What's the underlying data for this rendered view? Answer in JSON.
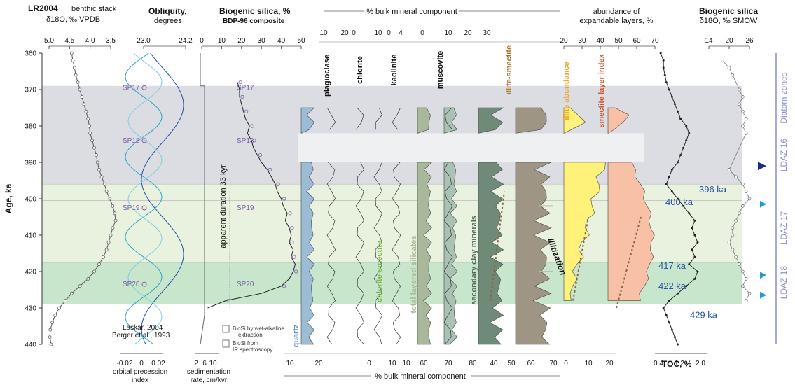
{
  "chart_data": {
    "type": "line",
    "y_axis": {
      "label": "Age, ka",
      "ylim": [
        360,
        440
      ],
      "ticks": [
        360,
        370,
        380,
        390,
        400,
        410,
        420,
        430,
        440
      ]
    },
    "bands": [
      {
        "from": 369,
        "to": 396,
        "color": "#dcdde2"
      },
      {
        "from": 396,
        "to": 417.5,
        "color": "#e8f2de"
      },
      {
        "from": 417.5,
        "to": 429,
        "color": "#c8e6cc"
      }
    ],
    "panels": {
      "lr04": {
        "title_bold": "LR2004",
        "title_rest": " benthic stack",
        "subtitle": "δ18O, ‰ VPDB",
        "ticks": [
          "5.0",
          "4.5",
          "4.0",
          "3.5"
        ],
        "ages": [
          360,
          362,
          364,
          366,
          368,
          370,
          372,
          374,
          376,
          378,
          380,
          382,
          384,
          386,
          388,
          390,
          392,
          394,
          396,
          398,
          400,
          402,
          404,
          406,
          408,
          410,
          412,
          414,
          416,
          418,
          420,
          422,
          424,
          426,
          428,
          430,
          432,
          434,
          436,
          438,
          440
        ],
        "values": [
          4.45,
          4.42,
          4.38,
          4.35,
          4.3,
          4.25,
          4.2,
          4.15,
          4.1,
          4.05,
          4.02,
          4.0,
          3.95,
          3.9,
          3.85,
          3.82,
          3.78,
          3.72,
          3.65,
          3.6,
          3.52,
          3.45,
          3.4,
          3.38,
          3.45,
          3.5,
          3.55,
          3.6,
          3.68,
          3.78,
          3.9,
          4.05,
          4.25,
          4.45,
          4.6,
          4.75,
          4.85,
          4.92,
          4.97,
          4.98,
          4.95
        ]
      },
      "obliquity": {
        "title": "Obliquity,",
        "subtitle": "degrees",
        "ticks": [
          "23.0",
          "24.2"
        ],
        "bottom_ticks": [
          "-0.02",
          "0",
          "0.02"
        ],
        "bottom_label": "orbital precession",
        "bottom_label2": "index",
        "source1": "Laskar, 2004",
        "source2": "Berger et al., 1993"
      },
      "sedrate": {
        "bottom_ticks": [
          "2",
          "6",
          "10"
        ],
        "bottom_label": "sedimentation",
        "bottom_label2": "rate, cm/kvr"
      },
      "biosi": {
        "title": "Biogenic silica, %",
        "subtitle": "BDP-96 composite",
        "ticks": [
          "0",
          "10",
          "20",
          "30",
          "40",
          "50"
        ],
        "annotation": "apparent duration 33 kyr",
        "legend1a": "BioSi by wet-alkaline",
        "legend1b": "extraction",
        "legend2a": "BioSi from",
        "legend2b": "IR spectroscopy",
        "ages": [
          368,
          370,
          372,
          374,
          376,
          378,
          380,
          382,
          384,
          386,
          388,
          390,
          392,
          394,
          396,
          398,
          400,
          402,
          404,
          406,
          408,
          410,
          412,
          414,
          416,
          418,
          420,
          422,
          424,
          426,
          428,
          430
        ],
        "values": [
          18,
          19,
          19,
          20,
          21,
          22,
          24,
          23,
          25,
          26,
          28,
          30,
          33,
          35,
          37,
          38,
          40,
          41,
          43,
          42,
          44,
          45,
          44,
          46,
          45,
          47,
          46,
          44,
          40,
          30,
          12,
          3
        ]
      },
      "sp_labels": [
        "SP17",
        "SP18",
        "SP19",
        "SP20"
      ],
      "sp_ages": [
        369.5,
        384,
        402.5,
        423.5
      ]
    },
    "minerals": {
      "top_title": "% bulk mineral component",
      "bottom_title": "% bulk mineral component",
      "top_ticks": [
        "10",
        "20",
        "0",
        "10",
        "0",
        "4",
        "0",
        "10",
        "20",
        "30"
      ],
      "bottom_ticks": [
        "10",
        "20",
        "0",
        "10",
        "10",
        "60",
        "70",
        "80",
        "40",
        "50",
        "60",
        "70",
        "0",
        "10",
        "20"
      ],
      "series": [
        {
          "name": "quartz",
          "color": "#9bbcd4"
        },
        {
          "name": "plagioclase",
          "color": "#333333"
        },
        {
          "name": "chlorite",
          "color": "#333333"
        },
        {
          "name": "chlorite-smectite",
          "color": "#7ab648"
        },
        {
          "name": "kaolinite",
          "color": "#333333"
        },
        {
          "name": "total layered silicates",
          "color": "#a9b89a"
        },
        {
          "name": "muscovite",
          "color": "#333333"
        },
        {
          "name": "secondary clay minerals",
          "color": "#58775e"
        },
        {
          "name": "illite-smectite",
          "color": "#b0752f"
        }
      ]
    },
    "expandable": {
      "title": "abundance of",
      "title2": "expandable layers, %",
      "top_ticks": [
        "20",
        "30",
        "40",
        "50",
        "60",
        "70"
      ],
      "illite_label": "illite abundance",
      "smectite_label": "smectite layer index",
      "illitization": "Illitization"
    },
    "toc": {
      "label": "TOC, %",
      "ticks": [
        "0.4",
        "1.2",
        "2.0"
      ],
      "ages": [
        360,
        362,
        364,
        366,
        368,
        370,
        372,
        374,
        376,
        378,
        380,
        382,
        384,
        386,
        388,
        390,
        392,
        394,
        396,
        398,
        400,
        402,
        404,
        406,
        408,
        410,
        412,
        414,
        416,
        418,
        420,
        422,
        424,
        426,
        428,
        430,
        432,
        434,
        436,
        438,
        440
      ],
      "values": [
        0.6,
        0.7,
        0.7,
        0.75,
        0.8,
        0.9,
        1.0,
        1.1,
        1.2,
        1.3,
        1.5,
        1.6,
        1.5,
        1.4,
        1.3,
        1.2,
        1.0,
        0.9,
        0.8,
        1.0,
        1.2,
        1.4,
        1.6,
        1.8,
        1.7,
        1.8,
        1.9,
        1.7,
        1.8,
        1.6,
        1.9,
        1.8,
        1.5,
        1.2,
        0.9,
        0.7,
        0.8,
        0.9,
        1.0,
        1.1,
        1.2
      ]
    },
    "o18": {
      "title": "Biogenic silica",
      "subtitle": "δ18O, ‰ SMOW",
      "ticks": [
        "14",
        "20",
        "26"
      ],
      "ages": [
        362,
        364,
        366,
        370,
        372,
        374,
        376,
        378,
        380,
        382,
        392,
        394,
        396,
        398,
        400,
        402,
        404,
        406,
        408,
        410,
        412,
        414,
        416,
        418,
        420,
        422,
        424,
        426,
        428
      ],
      "values": [
        18,
        20,
        21,
        23,
        24,
        23,
        24,
        25,
        24,
        25,
        20,
        22,
        24,
        25,
        26,
        24,
        23,
        22,
        21,
        21,
        20,
        21,
        22,
        23,
        24,
        25,
        24,
        26,
        25
      ]
    },
    "age_labels": [
      "396 ka",
      "400 ka",
      "417 ka",
      "422 ka",
      "429 ka"
    ],
    "zones": [
      "Diatom zones",
      "LDAZ 16",
      "LDAZ 17",
      "LDAZ 18"
    ]
  }
}
